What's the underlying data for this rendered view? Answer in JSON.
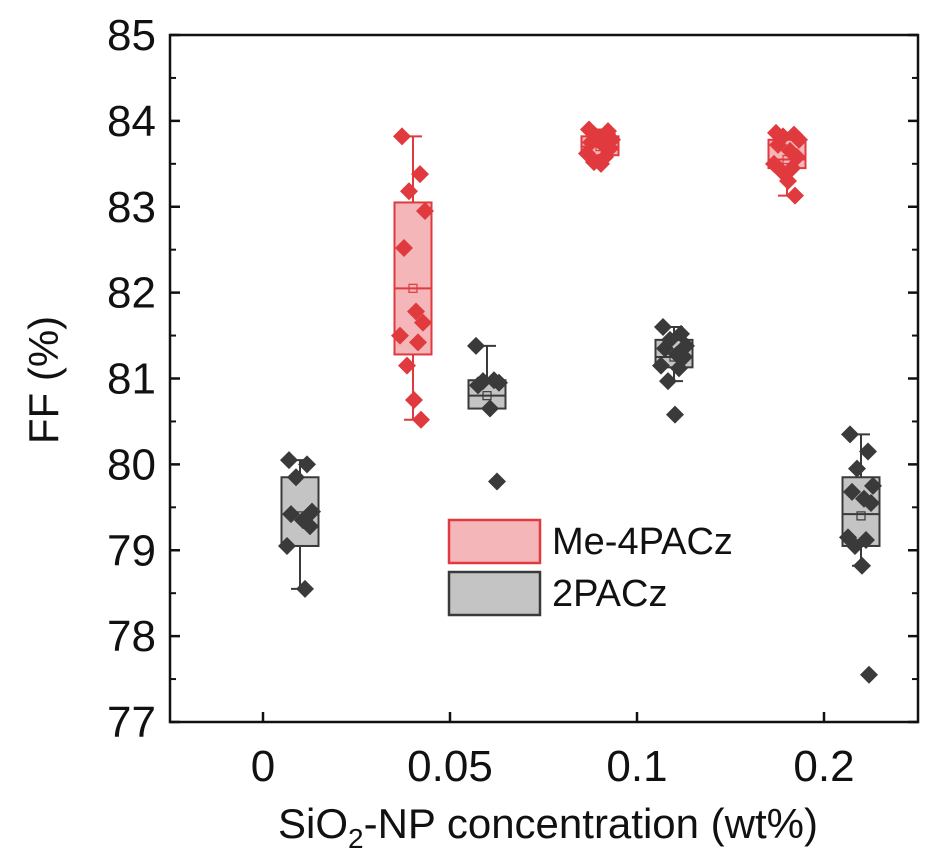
{
  "chart_data": {
    "type": "box",
    "title": "",
    "xlabel_main": "SiO",
    "xlabel_sub": "2",
    "xlabel_rest": "-NP concentration (wt%)",
    "ylabel": "FF (%)",
    "ylim": [
      77,
      85
    ],
    "yticks": [
      "77",
      "78",
      "79",
      "80",
      "81",
      "82",
      "83",
      "84",
      "85"
    ],
    "categories": [
      "0",
      "0.05",
      "0.1",
      "0.2"
    ],
    "legend_position": "center-right",
    "series": [
      {
        "name": "Me-4PACz",
        "color": "#e03a3e",
        "fill": "#f4b6b8",
        "boxes": [
          {
            "category": "0.05",
            "q1": 81.28,
            "median": 82.05,
            "q3": 83.05,
            "mean": 82.05,
            "whisker_low": 80.52,
            "whisker_high": 83.82,
            "points": [
              83.82,
              83.38,
              83.18,
              82.95,
              82.52,
              81.78,
              81.65,
              81.5,
              81.42,
              81.15,
              80.75,
              80.52
            ]
          },
          {
            "category": "0.1",
            "q1": 83.6,
            "median": 83.7,
            "q3": 83.82,
            "mean": 83.7,
            "whisker_low": 83.5,
            "whisker_high": 83.9,
            "points": [
              83.9,
              83.85,
              83.82,
              83.78,
              83.75,
              83.72,
              83.68,
              83.62,
              83.58,
              83.52,
              83.5,
              83.88
            ]
          },
          {
            "category": "0.2",
            "q1": 83.45,
            "median": 83.55,
            "q3": 83.78,
            "mean": 83.55,
            "whisker_low": 83.13,
            "whisker_high": 83.86,
            "points": [
              83.86,
              83.84,
              83.82,
              83.78,
              83.72,
              83.65,
              83.58,
              83.5,
              83.45,
              83.42,
              83.3,
              83.13
            ]
          }
        ]
      },
      {
        "name": "2PACz",
        "color": "#3a3a3a",
        "fill": "#c4c4c4",
        "boxes": [
          {
            "category": "0",
            "q1": 79.05,
            "median": 79.05,
            "q3": 79.85,
            "mean": 79.4,
            "whisker_low": 78.55,
            "whisker_high": 80.05,
            "points": [
              80.05,
              80.0,
              79.85,
              79.45,
              79.42,
              79.35,
              79.28,
              79.05,
              78.55
            ]
          },
          {
            "category": "0.05",
            "q1": 80.65,
            "median": 80.8,
            "q3": 80.98,
            "mean": 80.8,
            "whisker_low": 80.65,
            "whisker_high": 81.38,
            "points": [
              81.38,
              80.98,
              80.97,
              80.95,
              80.92,
              80.65,
              79.8
            ]
          },
          {
            "category": "0.1",
            "q1": 81.13,
            "median": 81.25,
            "q3": 81.45,
            "mean": 81.25,
            "whisker_low": 80.97,
            "whisker_high": 81.6,
            "points": [
              81.6,
              81.52,
              81.45,
              81.38,
              81.35,
              81.28,
              81.25,
              81.15,
              81.12,
              80.97,
              80.58
            ]
          },
          {
            "category": "0.2",
            "q1": 79.05,
            "median": 79.42,
            "q3": 79.85,
            "mean": 79.4,
            "whisker_low": 78.82,
            "whisker_high": 80.35,
            "points": [
              80.35,
              80.15,
              79.95,
              79.75,
              79.68,
              79.6,
              79.55,
              79.15,
              79.12,
              79.05,
              78.82,
              77.55
            ]
          }
        ]
      }
    ]
  }
}
